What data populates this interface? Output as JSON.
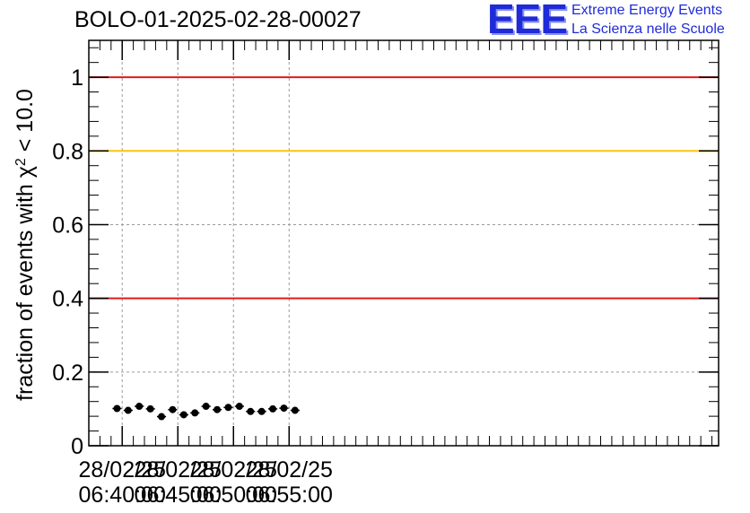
{
  "title": "BOLO-01-2025-02-28-00027",
  "logo": {
    "mark": "EEE",
    "line1": "Extreme Energy Events",
    "line2": "La Scienza nelle Scuole",
    "color": "#1f2bd8"
  },
  "chart_data": {
    "type": "scatter",
    "ylabel": "fraction of events with χ² < 10.0",
    "ylabel_prefix": "fraction of events with ",
    "ylabel_symbol": "χ",
    "ylabel_sup": "2",
    "ylabel_suffix": " < 10.0",
    "ylim": [
      0,
      1.1
    ],
    "yticks": [
      0,
      0.2,
      0.4,
      0.6,
      0.8,
      1
    ],
    "ytick_labels": [
      "0",
      "0.2",
      "0.4",
      "0.6",
      "0.8",
      "1"
    ],
    "xlim_minutes": [
      6.37,
      6.936
    ],
    "xtick_minutes": [
      6.4,
      6.45,
      6.5,
      6.55
    ],
    "xtick_labels": [
      [
        "28/02/25",
        "06:40:00"
      ],
      [
        "28/02/25",
        "06:45:00"
      ],
      [
        "28/02/25",
        "06:50:00"
      ],
      [
        "28/02/25",
        "06:55:00"
      ]
    ],
    "grid": true,
    "reference_lines": [
      {
        "y": 1.0,
        "color": "#e31a1c"
      },
      {
        "y": 0.8,
        "color": "#ffc20e"
      },
      {
        "y": 0.4,
        "color": "#e31a1c"
      }
    ],
    "bin_half_width_minutes": 0.0025,
    "points": [
      {
        "x": "06:39:32",
        "y": 0.101
      },
      {
        "x": "06:40:32",
        "y": 0.096
      },
      {
        "x": "06:41:32",
        "y": 0.107
      },
      {
        "x": "06:42:32",
        "y": 0.1
      },
      {
        "x": "06:43:32",
        "y": 0.079
      },
      {
        "x": "06:44:32",
        "y": 0.098
      },
      {
        "x": "06:45:32",
        "y": 0.084
      },
      {
        "x": "06:46:32",
        "y": 0.089
      },
      {
        "x": "06:47:32",
        "y": 0.107
      },
      {
        "x": "06:48:32",
        "y": 0.098
      },
      {
        "x": "06:49:32",
        "y": 0.104
      },
      {
        "x": "06:50:32",
        "y": 0.107
      },
      {
        "x": "06:51:32",
        "y": 0.093
      },
      {
        "x": "06:52:32",
        "y": 0.093
      },
      {
        "x": "06:53:32",
        "y": 0.1
      },
      {
        "x": "06:54:32",
        "y": 0.102
      },
      {
        "x": "06:55:32",
        "y": 0.096
      }
    ]
  }
}
